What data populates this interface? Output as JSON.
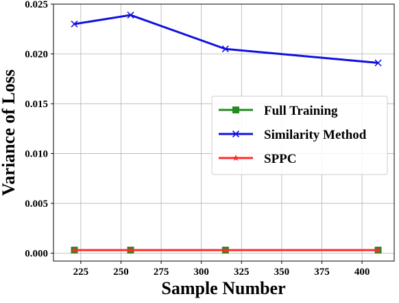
{
  "chart_data": {
    "type": "line",
    "title": "",
    "xlabel": "Sample Number",
    "ylabel": "Variance of Loss",
    "xlim": [
      208,
      420
    ],
    "ylim": [
      -0.0008,
      0.025
    ],
    "x_ticks": [
      225,
      250,
      275,
      300,
      325,
      350,
      375,
      400
    ],
    "x_tick_labels": [
      "225",
      "250",
      "275",
      "300",
      "325",
      "350",
      "375",
      "400"
    ],
    "y_ticks": [
      0.0,
      0.005,
      0.01,
      0.015,
      0.02,
      0.025
    ],
    "y_tick_labels": [
      "0.000",
      "0.005",
      "0.010",
      "0.015",
      "0.020",
      "0.025"
    ],
    "grid": true,
    "legend_position": "center-right",
    "x": [
      221,
      256,
      315,
      410
    ],
    "series": [
      {
        "name": "Full Training",
        "values": [
          0.0003,
          0.0003,
          0.0003,
          0.0003
        ],
        "color": "#228B22",
        "marker": "square"
      },
      {
        "name": "Similarity Method",
        "values": [
          0.023,
          0.0239,
          0.0205,
          0.0191
        ],
        "color": "#1010e0",
        "marker": "x"
      },
      {
        "name": "SPPC",
        "values": [
          0.0003,
          0.0003,
          0.0003,
          0.0003
        ],
        "color": "#ff2a2a",
        "marker": "star"
      }
    ]
  }
}
